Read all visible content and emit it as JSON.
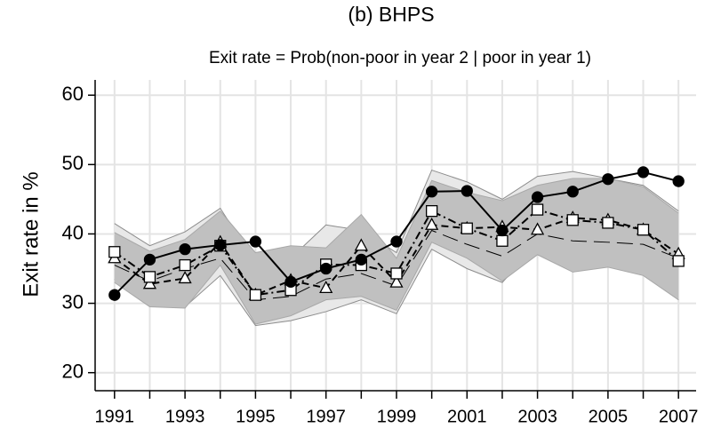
{
  "chart_data": {
    "type": "line",
    "title": "(b) BHPS",
    "subtitle": "Exit rate = Prob(non-poor in year 2 | poor in year 1)",
    "y_label": "Exit rate in %",
    "x": [
      1991,
      1992,
      1993,
      1994,
      1995,
      1996,
      1997,
      1998,
      1999,
      2000,
      2001,
      2002,
      2003,
      2004,
      2005,
      2006,
      2007
    ],
    "xlim": [
      1990.45,
      2007.5
    ],
    "xticks": [
      1991,
      1993,
      1995,
      1997,
      1999,
      2001,
      2003,
      2005,
      2007
    ],
    "xminor": [
      1992,
      1994,
      1996,
      1998,
      2000,
      2002,
      2004,
      2006
    ],
    "ylim": [
      17.4,
      62.2
    ],
    "yticks": [
      20,
      30,
      40,
      50,
      60
    ],
    "grid": true,
    "bands": [
      {
        "color": "#e8e8e8",
        "edge": "#8c8c8c",
        "upper": [
          41.5,
          38.3,
          40.3,
          43.7,
          35.8,
          36.5,
          41.3,
          40.5,
          37.3,
          49.2,
          47.5,
          45.0,
          48.3,
          49.0,
          48.0,
          47.0,
          43.3
        ],
        "lower": [
          33.5,
          30.0,
          29.5,
          34.0,
          26.8,
          27.5,
          28.8,
          30.5,
          28.5,
          37.8,
          35.0,
          33.0,
          38.5,
          35.0,
          35.5,
          34.8,
          30.5
        ]
      },
      {
        "color": "#c0c0c0",
        "edge": "#a8a8a8",
        "upper": [
          40.2,
          37.5,
          39.2,
          43.3,
          37.3,
          38.3,
          38.0,
          42.8,
          36.5,
          47.7,
          46.0,
          44.8,
          47.0,
          48.0,
          48.0,
          46.8,
          43.0
        ],
        "lower": [
          33.0,
          29.5,
          29.3,
          35.5,
          27.0,
          28.2,
          30.5,
          31.0,
          29.0,
          38.8,
          36.5,
          33.2,
          37.0,
          34.5,
          35.2,
          34.0,
          30.5
        ]
      }
    ],
    "series": [
      {
        "color": "#000000",
        "dash": "longdash",
        "marker": "none",
        "width": 1,
        "values": [
          35.5,
          33.2,
          35.0,
          36.5,
          30.5,
          31.0,
          33.5,
          34.3,
          32.5,
          40.5,
          38.5,
          36.8,
          40.0,
          39.0,
          38.8,
          38.5,
          36.5
        ]
      },
      {
        "color": "#000000",
        "dash": "dash",
        "marker": "triangle",
        "width": 2,
        "values": [
          36.5,
          32.8,
          33.6,
          38.8,
          31.2,
          33.3,
          32.2,
          38.3,
          33.0,
          41.3,
          40.8,
          41.0,
          40.6,
          42.3,
          42.0,
          40.6,
          37.1
        ]
      },
      {
        "color": "#000000",
        "dash": "dashdot",
        "marker": "square",
        "width": 2,
        "values": [
          37.4,
          33.8,
          35.5,
          38.3,
          31.2,
          31.9,
          35.6,
          35.5,
          34.3,
          43.3,
          40.8,
          39.0,
          43.5,
          42.0,
          41.6,
          40.6,
          36.1
        ]
      },
      {
        "color": "#000000",
        "dash": "solid",
        "marker": "circle",
        "width": 2,
        "values": [
          31.2,
          36.3,
          37.8,
          38.4,
          38.9,
          33.1,
          35.0,
          36.3,
          38.9,
          46.1,
          46.2,
          40.5,
          45.3,
          46.1,
          47.9,
          48.9,
          47.6
        ]
      }
    ]
  }
}
